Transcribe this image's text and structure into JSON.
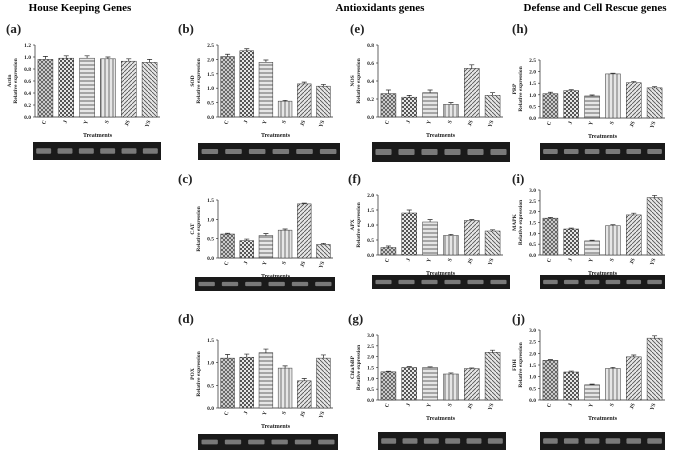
{
  "headers": [
    "House Keeping Genes",
    "Antioxidants genes",
    "Defense and Cell Rescue genes"
  ],
  "chart_data": [
    {
      "type": "bar",
      "label": "(a)",
      "ylabel": [
        "Actin",
        "Relative expression"
      ],
      "xlabel": "Treatments",
      "color": "#555555",
      "categories": [
        "C",
        "J",
        "Y",
        "S",
        "JS",
        "YS"
      ],
      "values": [
        0.96,
        0.98,
        0.98,
        0.97,
        0.93,
        0.91
      ],
      "errors": [
        0.05,
        0.04,
        0.04,
        0.03,
        0.04,
        0.05
      ],
      "ylim": [
        0,
        1.2
      ],
      "yticks": [
        {
          "value": 0,
          "label": "0.0"
        },
        0.2,
        0.4,
        0.6,
        0.8,
        {
          "value": 1,
          "label": "1.0"
        },
        1.2
      ]
    },
    {
      "type": "bar",
      "label": "(b)",
      "ylabel": [
        "SOD",
        "Relative expression"
      ],
      "xlabel": "Treatments",
      "color": "#555555",
      "categories": [
        "C",
        "J",
        "Y",
        "S",
        "JS",
        "YS"
      ],
      "values": [
        2.1,
        2.3,
        1.9,
        0.55,
        1.15,
        1.07
      ],
      "errors": [
        0.08,
        0.07,
        0.08,
        0.03,
        0.06,
        0.06
      ],
      "ylim": [
        0,
        2.5
      ],
      "yticks": [
        {
          "value": 0,
          "label": "0.0"
        },
        0.5,
        {
          "value": 1,
          "label": "1.0"
        },
        1.5,
        {
          "value": 2,
          "label": "2.0"
        },
        2.5
      ]
    },
    {
      "type": "bar",
      "label": "(c)",
      "ylabel": [
        "CAT",
        "Relative expression"
      ],
      "xlabel": "Treatments",
      "color": "#555555",
      "categories": [
        "C",
        "J",
        "Y",
        "S",
        "JS",
        "YS"
      ],
      "values": [
        0.62,
        0.45,
        0.58,
        0.72,
        1.4,
        0.35
      ],
      "errors": [
        0.02,
        0.04,
        0.05,
        0.03,
        0.02,
        0.03
      ],
      "ylim": [
        0,
        1.5
      ],
      "yticks": [
        {
          "value": 0,
          "label": "0.0"
        },
        0.5,
        {
          "value": 1,
          "label": "1.0"
        },
        1.5
      ]
    },
    {
      "type": "bar",
      "label": "(d)",
      "ylabel": [
        "POX",
        "Relative expression"
      ],
      "xlabel": "Treatments",
      "color": "#555555",
      "categories": [
        "C",
        "J",
        "Y",
        "S",
        "JS",
        "YS"
      ],
      "values": [
        1.1,
        1.12,
        1.22,
        0.88,
        0.6,
        1.1
      ],
      "errors": [
        0.08,
        0.07,
        0.08,
        0.05,
        0.05,
        0.07
      ],
      "ylim": [
        0,
        1.5
      ],
      "yticks": [
        {
          "value": 0,
          "label": "0.0"
        },
        0.5,
        {
          "value": 1,
          "label": "1.0"
        },
        1.5
      ]
    },
    {
      "type": "bar",
      "label": "(e)",
      "ylabel": [
        "NOS",
        "Relative expression"
      ],
      "xlabel": "Treatments",
      "color": "#555555",
      "categories": [
        "C",
        "J",
        "Y",
        "S",
        "JS",
        "YS"
      ],
      "values": [
        0.26,
        0.22,
        0.27,
        0.14,
        0.54,
        0.24
      ],
      "errors": [
        0.04,
        0.02,
        0.03,
        0.02,
        0.04,
        0.03
      ],
      "ylim": [
        0,
        0.8
      ],
      "yticks": [
        {
          "value": 0,
          "label": "0.0"
        },
        0.2,
        0.4,
        0.6,
        0.8
      ]
    },
    {
      "type": "bar",
      "label": "(f)",
      "ylabel": [
        "APX",
        "Relative expression"
      ],
      "xlabel": "Treatments",
      "color": "#555555",
      "categories": [
        "C",
        "J",
        "Y",
        "S",
        "JS",
        "YS"
      ],
      "values": [
        0.25,
        1.4,
        1.1,
        0.65,
        1.15,
        0.8
      ],
      "errors": [
        0.05,
        0.1,
        0.08,
        0.04,
        0.03,
        0.04
      ],
      "ylim": [
        0,
        2
      ],
      "yticks": [
        {
          "value": 0,
          "label": "0.0"
        },
        0.5,
        {
          "value": 1,
          "label": "1.0"
        },
        1.5,
        {
          "value": 2,
          "label": "2.0"
        }
      ]
    },
    {
      "type": "bar",
      "label": "(g)",
      "ylabel": [
        "Chla/bBP",
        "Relative expression"
      ],
      "xlabel": "Treatments",
      "color": "#555555",
      "categories": [
        "C",
        "J",
        "Y",
        "S",
        "JS",
        "YS"
      ],
      "values": [
        1.3,
        1.5,
        1.5,
        1.2,
        1.45,
        2.2
      ],
      "errors": [
        0.03,
        0.04,
        0.03,
        0.05,
        0.03,
        0.1
      ],
      "ylim": [
        0,
        3
      ],
      "yticks": [
        {
          "value": 0,
          "label": "0.0"
        },
        0.5,
        {
          "value": 1,
          "label": "1.0"
        },
        1.5,
        {
          "value": 2,
          "label": "2.0"
        },
        2.5,
        {
          "value": 3,
          "label": "3.0"
        }
      ]
    },
    {
      "type": "bar",
      "label": "(h)",
      "ylabel": [
        "PRP",
        "Relative expression"
      ],
      "xlabel": "Treatments",
      "color": "#555555",
      "categories": [
        "C",
        "J",
        "Y",
        "S",
        "JS",
        "YS"
      ],
      "values": [
        1.05,
        1.18,
        0.95,
        1.9,
        1.52,
        1.3
      ],
      "errors": [
        0.06,
        0.04,
        0.04,
        0.03,
        0.05,
        0.05
      ],
      "ylim": [
        0,
        2.5
      ],
      "yticks": [
        {
          "value": 0,
          "label": "0.0"
        },
        0.5,
        {
          "value": 1,
          "label": "1.0"
        },
        1.5,
        {
          "value": 2,
          "label": "2.0"
        },
        2.5
      ]
    },
    {
      "type": "bar",
      "label": "(i)",
      "ylabel": [
        "MAPK",
        "Relative expression"
      ],
      "xlabel": "Treatments",
      "color": "#555555",
      "categories": [
        "C",
        "J",
        "Y",
        "S",
        "JS",
        "YS"
      ],
      "values": [
        1.7,
        1.2,
        0.65,
        1.35,
        1.85,
        2.65
      ],
      "errors": [
        0.03,
        0.04,
        0.03,
        0.05,
        0.08,
        0.1
      ],
      "ylim": [
        0,
        3
      ],
      "yticks": [
        {
          "value": 0,
          "label": "0.0"
        },
        0.5,
        {
          "value": 1,
          "label": "1.0"
        },
        1.5,
        {
          "value": 2,
          "label": "2.0"
        },
        2.5,
        {
          "value": 3,
          "label": "3.0"
        }
      ]
    },
    {
      "type": "bar",
      "label": "(j)",
      "ylabel": [
        "FDH",
        "Relative expression"
      ],
      "xlabel": "Treatments",
      "color": "#555555",
      "categories": [
        "C",
        "J",
        "Y",
        "S",
        "JS",
        "YS"
      ],
      "values": [
        1.7,
        1.2,
        0.65,
        1.35,
        1.85,
        2.65
      ],
      "errors": [
        0.03,
        0.04,
        0.03,
        0.05,
        0.08,
        0.1
      ],
      "ylim": [
        0,
        3
      ],
      "yticks": [
        {
          "value": 0,
          "label": "0.0"
        },
        0.5,
        {
          "value": 1,
          "label": "1.0"
        },
        1.5,
        {
          "value": 2,
          "label": "2.0"
        },
        2.5,
        {
          "value": 3,
          "label": "3.0"
        }
      ]
    }
  ]
}
